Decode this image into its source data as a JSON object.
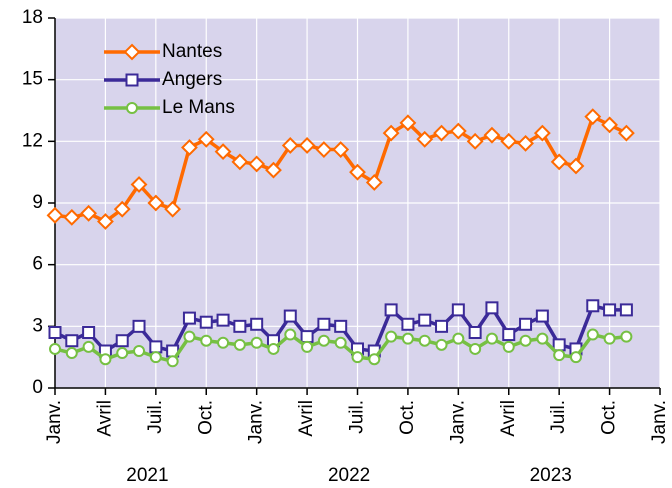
{
  "chart_data": {
    "type": "line",
    "x": [
      "2021-01",
      "2021-02",
      "2021-03",
      "2021-04",
      "2021-05",
      "2021-06",
      "2021-07",
      "2021-08",
      "2021-09",
      "2021-10",
      "2021-11",
      "2021-12",
      "2022-01",
      "2022-02",
      "2022-03",
      "2022-04",
      "2022-05",
      "2022-06",
      "2022-07",
      "2022-08",
      "2022-09",
      "2022-10",
      "2022-11",
      "2022-12",
      "2023-01",
      "2023-02",
      "2023-03",
      "2023-04",
      "2023-05",
      "2023-06",
      "2023-07",
      "2023-08",
      "2023-09",
      "2023-10",
      "2023-11"
    ],
    "series": [
      {
        "name": "Nantes",
        "color": "#ff6a00",
        "marker": "diamond",
        "values": [
          8.4,
          8.3,
          8.5,
          8.1,
          8.7,
          9.9,
          9.0,
          8.7,
          11.7,
          12.1,
          11.5,
          11.0,
          10.9,
          10.6,
          11.8,
          11.8,
          11.6,
          11.6,
          10.5,
          10.0,
          12.4,
          12.9,
          12.1,
          12.4,
          12.5,
          12.0,
          12.3,
          12.0,
          11.9,
          12.4,
          11.0,
          10.8,
          13.2,
          12.8,
          12.4
        ]
      },
      {
        "name": "Angers",
        "color": "#3b2a98",
        "marker": "square",
        "values": [
          2.7,
          2.3,
          2.7,
          1.8,
          2.3,
          3.0,
          2.0,
          1.8,
          3.4,
          3.2,
          3.3,
          3.0,
          3.1,
          2.3,
          3.5,
          2.5,
          3.1,
          3.0,
          1.9,
          1.8,
          3.8,
          3.1,
          3.3,
          3.0,
          3.8,
          2.7,
          3.9,
          2.6,
          3.1,
          3.5,
          2.1,
          1.9,
          4.0,
          3.8,
          3.8
        ]
      },
      {
        "name": "Le Mans",
        "color": "#76c043",
        "marker": "circle",
        "values": [
          1.9,
          1.7,
          2.0,
          1.4,
          1.7,
          1.8,
          1.5,
          1.3,
          2.5,
          2.3,
          2.2,
          2.1,
          2.2,
          1.9,
          2.6,
          2.0,
          2.3,
          2.2,
          1.5,
          1.4,
          2.5,
          2.4,
          2.3,
          2.1,
          2.4,
          1.9,
          2.4,
          2.0,
          2.3,
          2.4,
          1.6,
          1.5,
          2.6,
          2.4,
          2.5
        ]
      }
    ],
    "xlim": [
      "2021-01",
      "2024-01"
    ],
    "xticks": [
      {
        "value": "2021-01",
        "label": "Janv."
      },
      {
        "value": "2021-04",
        "label": "Avril"
      },
      {
        "value": "2021-07",
        "label": "Juil."
      },
      {
        "value": "2021-10",
        "label": "Oct."
      },
      {
        "value": "2022-01",
        "label": "Janv."
      },
      {
        "value": "2022-04",
        "label": "Avril"
      },
      {
        "value": "2022-07",
        "label": "Juil."
      },
      {
        "value": "2022-10",
        "label": "Oct."
      },
      {
        "value": "2023-01",
        "label": "Janv."
      },
      {
        "value": "2023-04",
        "label": "Avril"
      },
      {
        "value": "2023-07",
        "label": "Juil."
      },
      {
        "value": "2023-10",
        "label": "Oct."
      },
      {
        "value": "2024-01",
        "label": "Janv."
      }
    ],
    "years": [
      "2021",
      "2022",
      "2023"
    ],
    "ylim": [
      0,
      18
    ],
    "yticks": [
      0,
      3,
      6,
      9,
      12,
      15,
      18
    ],
    "grid": true,
    "legend": "upper-left"
  }
}
